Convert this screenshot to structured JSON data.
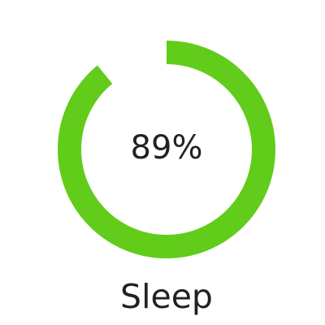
{
  "widget": {
    "percent_text": "89%",
    "progress": 0.89,
    "label": "Sleep",
    "arc_color": "#62cc1a",
    "track_color": "#ffffff",
    "icon": "progress-ring"
  }
}
